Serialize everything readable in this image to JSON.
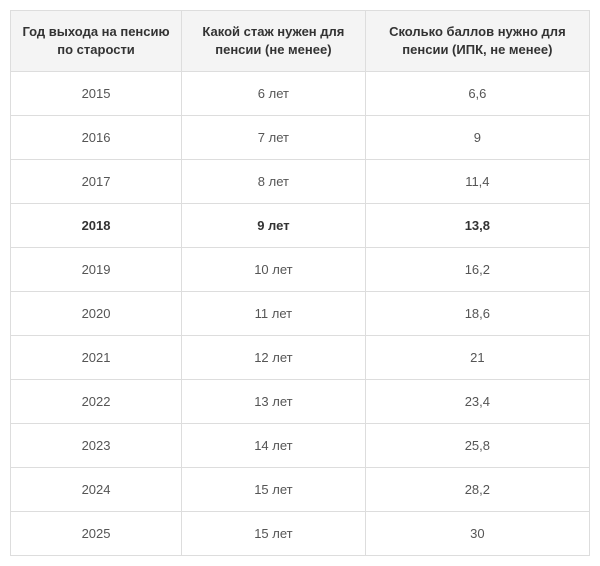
{
  "table": {
    "columns": [
      "Год выхода на пенсию по старости",
      "Какой стаж нужен для пенсии (не менее)",
      "Сколько баллов нужно для пенсии (ИПК, не менее)"
    ],
    "rows": [
      {
        "year": "2015",
        "stage": "6 лет",
        "points": "6,6",
        "highlight": false
      },
      {
        "year": "2016",
        "stage": "7 лет",
        "points": "9",
        "highlight": false
      },
      {
        "year": "2017",
        "stage": "8 лет",
        "points": "11,4",
        "highlight": false
      },
      {
        "year": "2018",
        "stage": "9 лет",
        "points": "13,8",
        "highlight": true
      },
      {
        "year": "2019",
        "stage": "10 лет",
        "points": "16,2",
        "highlight": false
      },
      {
        "year": "2020",
        "stage": "11 лет",
        "points": "18,6",
        "highlight": false
      },
      {
        "year": "2021",
        "stage": "12 лет",
        "points": "21",
        "highlight": false
      },
      {
        "year": "2022",
        "stage": "13 лет",
        "points": "23,4",
        "highlight": false
      },
      {
        "year": "2023",
        "stage": "14 лет",
        "points": "25,8",
        "highlight": false
      },
      {
        "year": "2024",
        "stage": "15 лет",
        "points": "28,2",
        "highlight": false
      },
      {
        "year": "2025",
        "stage": "15 лет",
        "points": "30",
        "highlight": false
      }
    ],
    "column_widths": [
      "33%",
      "33%",
      "34%"
    ],
    "header_bg": "#f4f4f4",
    "border_color": "#dddddd",
    "text_color": "#555555",
    "header_text_color": "#333333",
    "highlight_text_color": "#333333"
  }
}
